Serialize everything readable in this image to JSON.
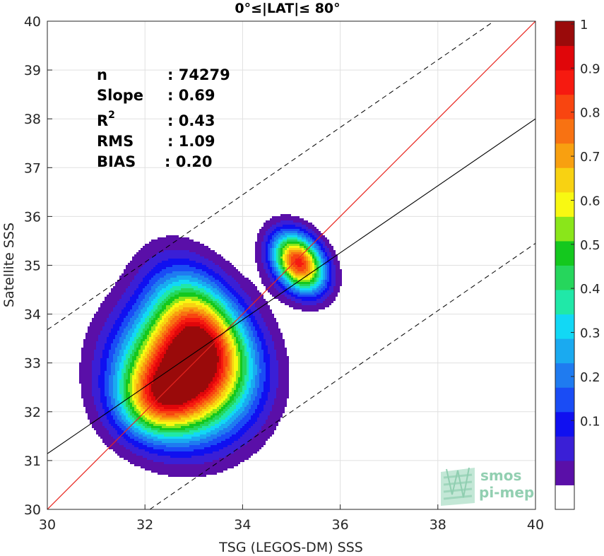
{
  "chart_data": {
    "type": "heatmap",
    "title": "0°≤|LAT|≤ 80°",
    "xlabel": "TSG (LEGOS-DM) SSS",
    "ylabel": "Satellite SSS",
    "xlim": [
      30,
      40
    ],
    "ylim": [
      30,
      40
    ],
    "x_ticks": [
      "30",
      "32",
      "34",
      "36",
      "38",
      "40"
    ],
    "y_ticks": [
      "30",
      "31",
      "32",
      "33",
      "34",
      "35",
      "36",
      "37",
      "38",
      "39",
      "40"
    ],
    "grid": true,
    "stats": [
      {
        "label": "n",
        "value": ": 74279"
      },
      {
        "label": "Slope",
        "value": ": 0.69"
      },
      {
        "label": "R",
        "sup": "2",
        "value": ": 0.43"
      },
      {
        "label": "RMS",
        "value": ": 1.09"
      },
      {
        "label": "BIAS",
        "value": ": 0.20"
      }
    ],
    "one_to_one_line": {
      "color": "#e8241e",
      "points": [
        [
          30,
          30
        ],
        [
          40,
          40
        ]
      ]
    },
    "regression_line": {
      "color": "#000000",
      "slope": 0.69,
      "points": [
        [
          30,
          31.14
        ],
        [
          40,
          38.0
        ]
      ]
    },
    "rms_band_lines": {
      "style": "dashed",
      "upper": [
        [
          30,
          33.68
        ],
        [
          39.15,
          40
        ]
      ],
      "lower": [
        [
          32.1,
          30
        ],
        [
          40,
          35.45
        ]
      ]
    },
    "density_peaks": [
      {
        "x": 32.8,
        "y": 32.8,
        "value": 1.0
      },
      {
        "x": 35.2,
        "y": 35.1,
        "value": 0.92
      },
      {
        "x": 33.3,
        "y": 34.0,
        "value": 0.45
      }
    ],
    "colorbar": {
      "range": [
        0,
        1
      ],
      "ticks": [
        "0.1",
        "0.2",
        "0.3",
        "0.4",
        "0.5",
        "0.6",
        "0.7",
        "0.8",
        "0.9",
        "1"
      ],
      "levels": [
        "#ffffff",
        "#5a0fa8",
        "#3a1fd6",
        "#1010f0",
        "#1a4cf5",
        "#1f7bf0",
        "#1aaaf0",
        "#12d8f5",
        "#20e8a8",
        "#26d65c",
        "#14c81e",
        "#8ae61a",
        "#f8f812",
        "#f8d212",
        "#f8a010",
        "#f87212",
        "#f84510",
        "#f61a10",
        "#e0060a",
        "#9a0a0a"
      ]
    }
  },
  "watermark": {
    "line1": "smos",
    "line2": "pi-mep"
  }
}
